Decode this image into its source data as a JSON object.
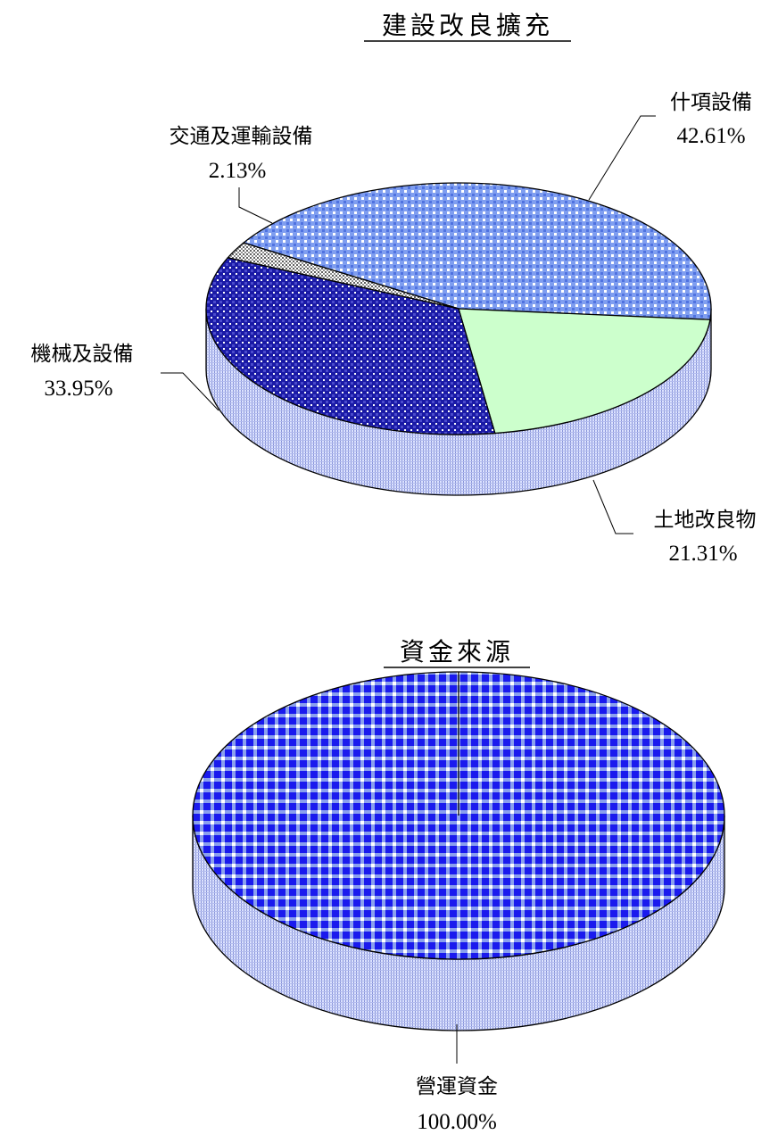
{
  "chart_data": [
    {
      "type": "pie",
      "title": "建設改良擴充",
      "slices": [
        {
          "label": "什項設備",
          "value": 42.61,
          "value_text": "42.61%",
          "color": "#7f9ef0",
          "pattern": "check-light"
        },
        {
          "label": "土地改良物",
          "value": 21.31,
          "value_text": "21.31%",
          "color": "#ccffcc",
          "pattern": "solid"
        },
        {
          "label": "機械及設備",
          "value": 33.95,
          "value_text": "33.95%",
          "color": "#1a1aa6",
          "pattern": "check-dark"
        },
        {
          "label": "交通及運輸設備",
          "value": 2.13,
          "value_text": "2.13%",
          "color": "#808080",
          "pattern": "dots"
        }
      ],
      "legend": "none",
      "style": "3d"
    },
    {
      "type": "pie",
      "title": "資金來源",
      "slices": [
        {
          "label": "營運資金",
          "value": 100.0,
          "value_text": "100.00%",
          "color": "#1a1aee",
          "pattern": "check-blue"
        }
      ],
      "legend": "none",
      "style": "3d"
    }
  ]
}
